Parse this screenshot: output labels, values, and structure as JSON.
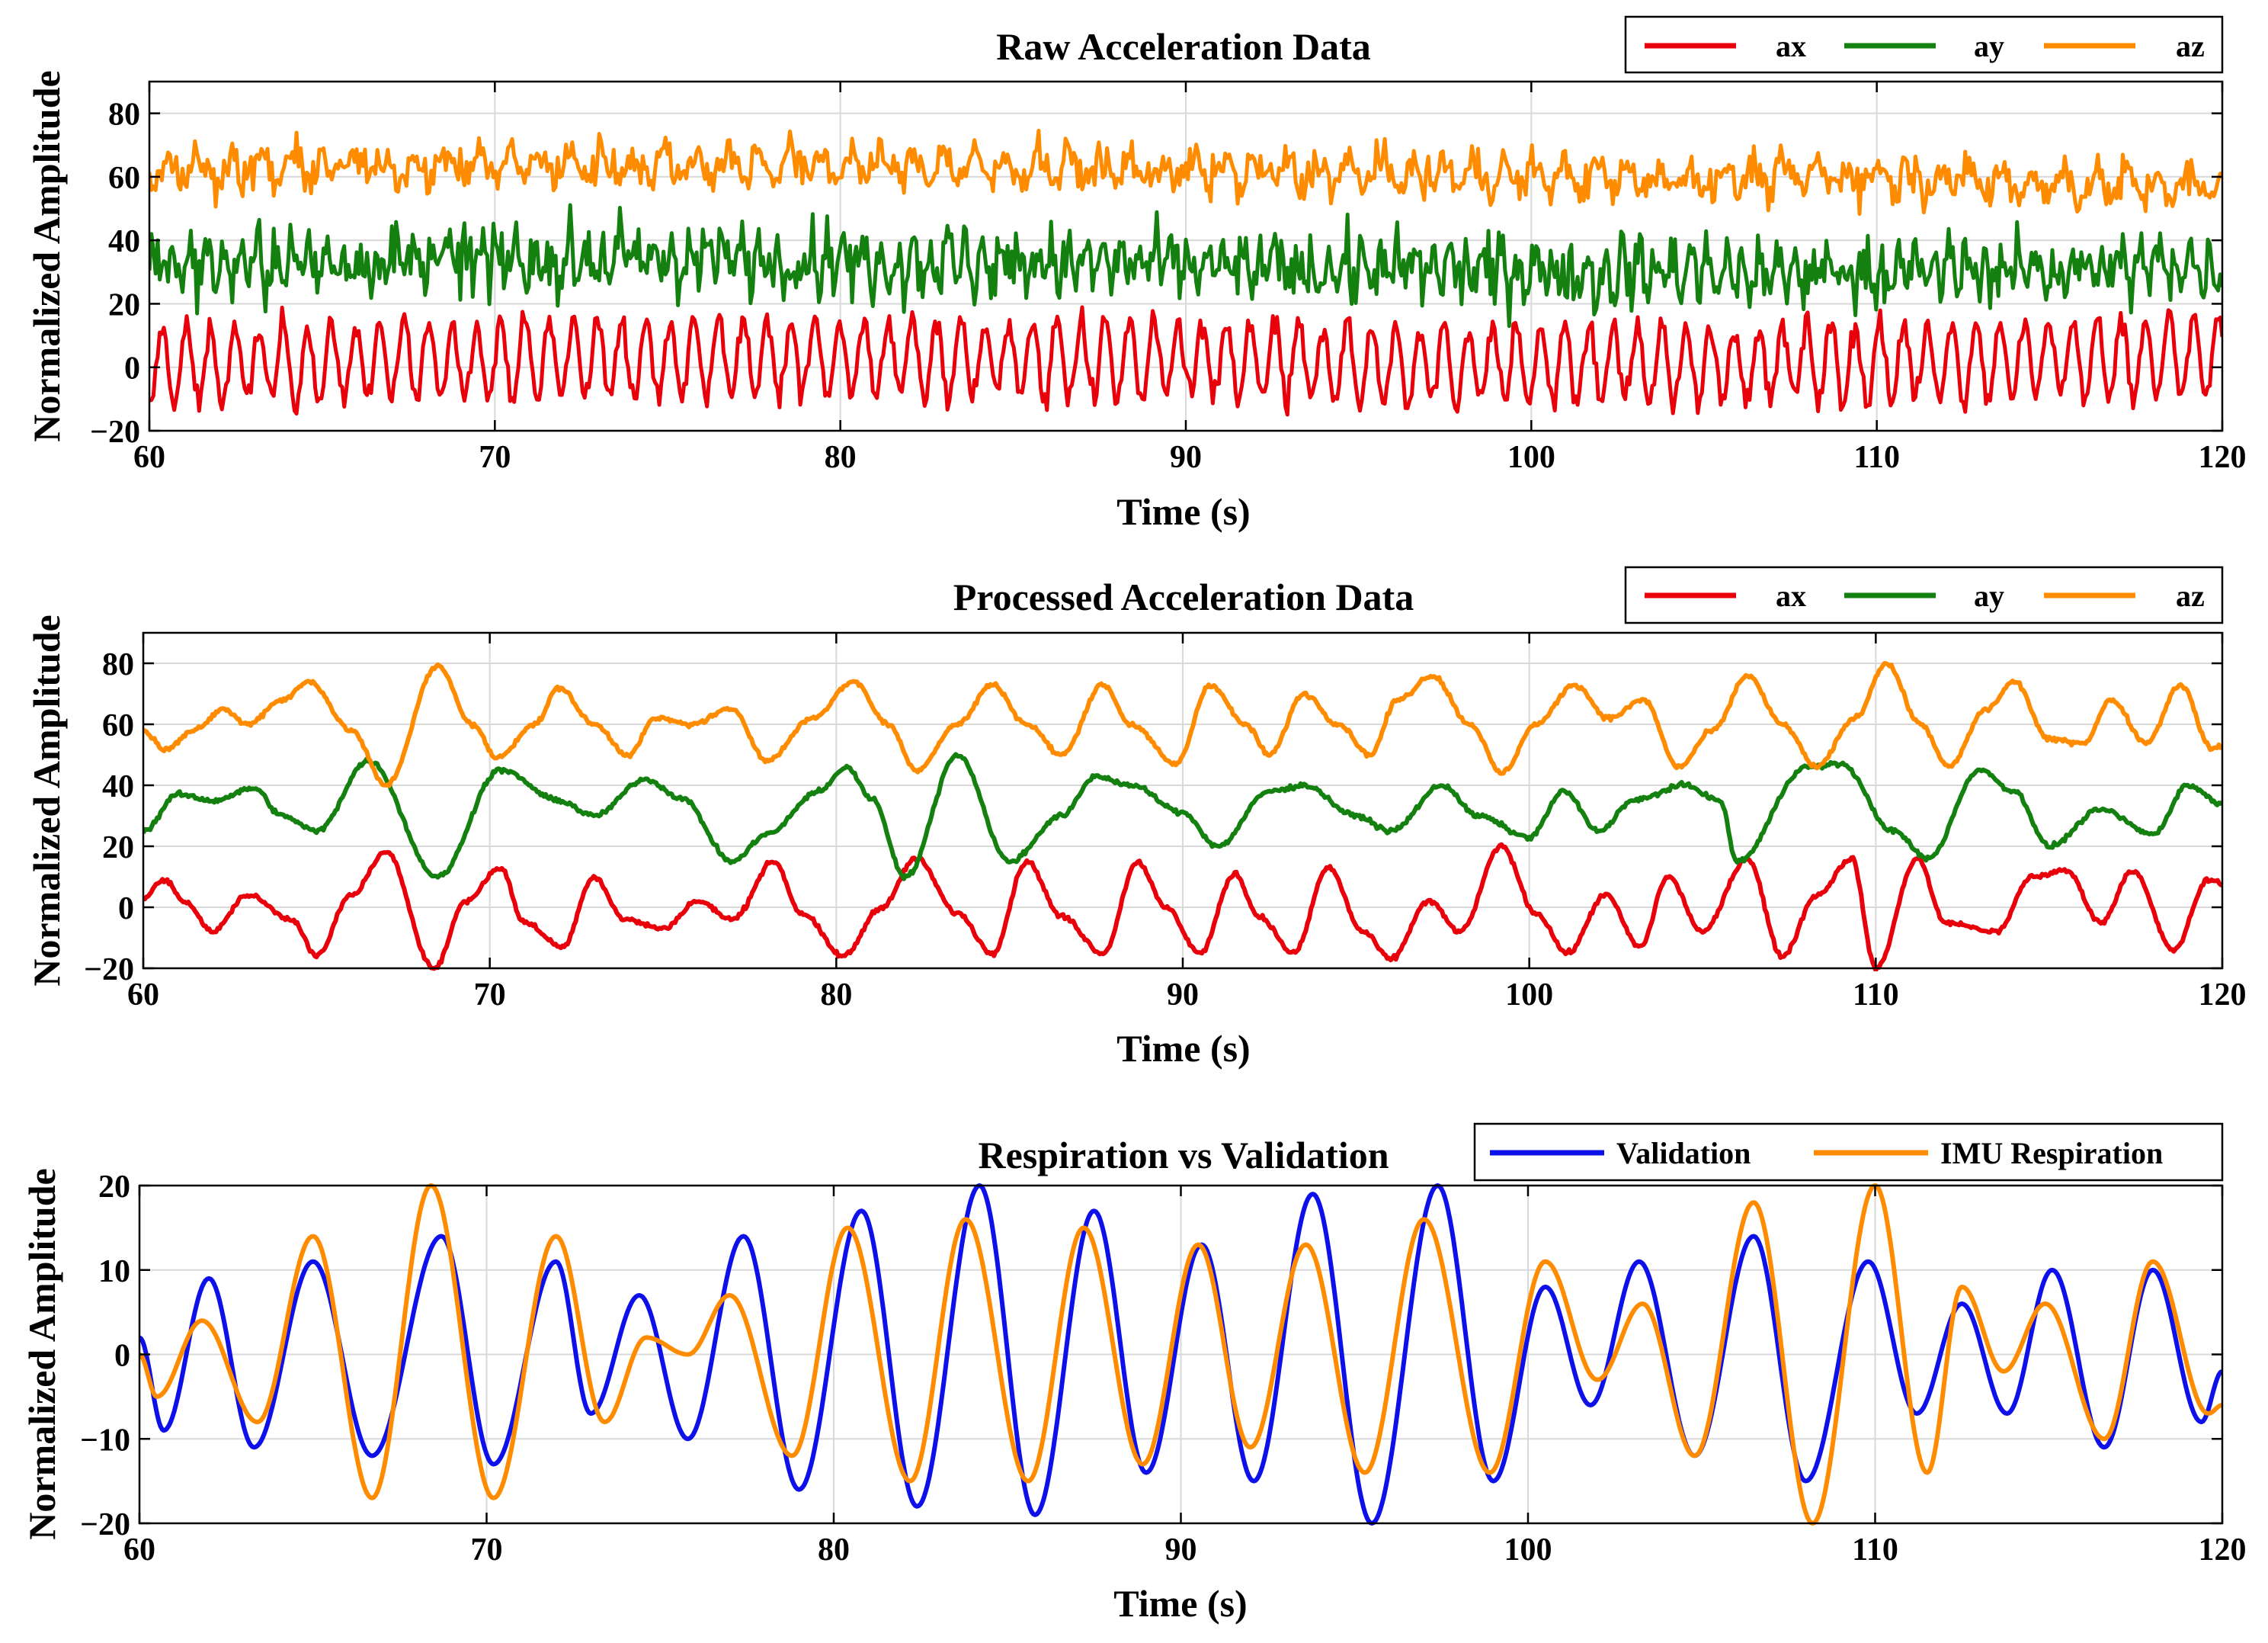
{
  "chart_data": [
    {
      "type": "line",
      "title": "Raw Acceleration Data",
      "xlabel": "Time (s)",
      "ylabel": "Normalized Amplitude",
      "xlim": [
        60,
        120
      ],
      "ylim": [
        -20,
        90
      ],
      "xticks": [
        60,
        70,
        80,
        90,
        100,
        110,
        120
      ],
      "yticks": [
        -20,
        0,
        20,
        40,
        60,
        80
      ],
      "xtick_labels": [
        "60",
        "70",
        "80",
        "90",
        "100",
        "110",
        "120"
      ],
      "ytick_labels": [
        "−20",
        "0",
        "20",
        "40",
        "60",
        "80"
      ],
      "grid": true,
      "legend": "top-right",
      "series": [
        {
          "name": "ax",
          "color": "#e8000b",
          "signal": "raw",
          "baseline": 0,
          "amplitude": 12,
          "noise": 3.5,
          "period_s": 0.7
        },
        {
          "name": "ay",
          "color": "#13800f",
          "signal": "raw",
          "baseline": 32,
          "amplitude": 5,
          "noise": 9,
          "period_s": 0.5
        },
        {
          "name": "az",
          "color": "#ff8c00",
          "signal": "raw",
          "baseline": 62,
          "amplitude": 4,
          "noise": 6,
          "period_s": 0.9
        }
      ]
    },
    {
      "type": "line",
      "title": "Processed Acceleration Data",
      "xlabel": "Time (s)",
      "ylabel": "Normalized Amplitude",
      "xlim": [
        60,
        120
      ],
      "ylim": [
        -20,
        90
      ],
      "xticks": [
        60,
        70,
        80,
        90,
        100,
        110,
        120
      ],
      "yticks": [
        -20,
        0,
        20,
        40,
        60,
        80
      ],
      "xtick_labels": [
        "60",
        "70",
        "80",
        "90",
        "100",
        "110",
        "120"
      ],
      "ytick_labels": [
        "−20",
        "0",
        "20",
        "40",
        "60",
        "80"
      ],
      "grid": true,
      "legend": "top-right",
      "series": [
        {
          "name": "ax",
          "color": "#e8000b",
          "offset": 0,
          "t": [
            60,
            60.6,
            61.2,
            62.0,
            63.0,
            64.3,
            65.0,
            66.0,
            67.0,
            68.4,
            69.3,
            70.3,
            71.0,
            72.1,
            73.0,
            73.9,
            75.0,
            76.0,
            77.0,
            78.2,
            79.0,
            80.2,
            81.3,
            82.3,
            83.5,
            84.5,
            85.5,
            86.5,
            87.7,
            88.7,
            89.5,
            90.5,
            91.5,
            92.2,
            93.2,
            94.2,
            95.2,
            96.0,
            97.1,
            98.0,
            99.2,
            100.2,
            101.1,
            102.2,
            103.2,
            104.0,
            105.0,
            106.3,
            107.3,
            108.3,
            109.3,
            110.0,
            111.2,
            112.0,
            113.5,
            114.5,
            115.5,
            116.5,
            117.4,
            118.6,
            119.6,
            120
          ],
          "y": [
            3,
            9,
            2,
            -8,
            4,
            -4,
            -16,
            4,
            18,
            -20,
            2,
            13,
            -5,
            -13,
            10,
            -4,
            -7,
            2,
            -4,
            15,
            -2,
            -16,
            0,
            16,
            -2,
            -15,
            15,
            -3,
            -15,
            15,
            0,
            -15,
            11,
            -3,
            -15,
            13,
            -8,
            -17,
            2,
            -8,
            20,
            -2,
            -15,
            4,
            -13,
            10,
            -8,
            16,
            -16,
            4,
            16,
            -20,
            16,
            -5,
            -8,
            10,
            12,
            -5,
            12,
            -14,
            9,
            8
          ]
        },
        {
          "name": "ay",
          "color": "#13800f",
          "offset": 0,
          "t": [
            60,
            61.0,
            62.0,
            63.2,
            64.0,
            65.0,
            66.5,
            68.5,
            70.3,
            72.0,
            73.0,
            74.5,
            75.5,
            77.0,
            78.0,
            79.5,
            80.3,
            81.0,
            82.0,
            83.5,
            85.0,
            86.5,
            87.5,
            88.5,
            90.0,
            91.0,
            92.5,
            93.5,
            95.0,
            96.0,
            97.5,
            98.5,
            100.0,
            101.0,
            102.0,
            103.0,
            104.5,
            105.5,
            106.0,
            108.0,
            109.0,
            110.5,
            111.5,
            113.0,
            114.0,
            115.0,
            116.5,
            118.0,
            119.0,
            120
          ],
          "y": [
            25,
            37,
            35,
            39,
            30,
            25,
            48,
            10,
            45,
            35,
            30,
            42,
            36,
            15,
            24,
            38,
            46,
            36,
            10,
            50,
            15,
            30,
            43,
            40,
            31,
            20,
            38,
            40,
            30,
            25,
            40,
            30,
            23,
            38,
            25,
            35,
            40,
            35,
            15,
            46,
            47,
            25,
            16,
            45,
            38,
            20,
            32,
            24,
            40,
            34
          ]
        },
        {
          "name": "az",
          "color": "#ff8c00",
          "offset": 0,
          "t": [
            60,
            60.6,
            61.5,
            62.3,
            63.0,
            64.0,
            64.8,
            66.0,
            67.0,
            68.5,
            69.5,
            70.2,
            71.3,
            72.0,
            73.0,
            74.0,
            74.8,
            75.8,
            77.0,
            78.0,
            79.3,
            80.5,
            81.5,
            82.3,
            83.5,
            84.5,
            85.5,
            86.5,
            87.7,
            88.5,
            89.8,
            90.8,
            91.8,
            92.5,
            93.5,
            94.5,
            95.4,
            96.2,
            97.2,
            98.3,
            99.2,
            100.2,
            101.3,
            102.3,
            103.3,
            104.3,
            105.3,
            106.3,
            107.3,
            108.3,
            109.4,
            110.3,
            111.3,
            112.1,
            113.2,
            114.0,
            115.0,
            116.0,
            116.8,
            117.8,
            118.8,
            119.7,
            120
          ],
          "y": [
            58,
            52,
            58,
            65,
            60,
            68,
            74,
            58,
            40,
            79,
            60,
            49,
            60,
            72,
            60,
            50,
            62,
            60,
            65,
            48,
            62,
            74,
            60,
            45,
            60,
            73,
            60,
            50,
            73,
            60,
            47,
            73,
            60,
            50,
            70,
            60,
            50,
            68,
            76,
            60,
            44,
            60,
            73,
            62,
            68,
            46,
            58,
            76,
            60,
            46,
            62,
            80,
            60,
            46,
            65,
            74,
            55,
            54,
            68,
            54,
            73,
            52,
            53
          ]
        }
      ]
    },
    {
      "type": "line",
      "title": "Respiration vs Validation",
      "xlabel": "Time (s)",
      "ylabel": "Normalized Amplitude",
      "xlim": [
        60,
        120
      ],
      "ylim": [
        -20,
        20
      ],
      "xticks": [
        60,
        70,
        80,
        90,
        100,
        110,
        120
      ],
      "yticks": [
        -20,
        -10,
        0,
        10,
        20
      ],
      "xtick_labels": [
        "60",
        "70",
        "80",
        "90",
        "100",
        "110",
        "120"
      ],
      "ytick_labels": [
        "−20",
        "−10",
        "0",
        "10",
        "20"
      ],
      "grid": true,
      "legend": "top-right",
      "series": [
        {
          "name": "Validation",
          "color": "#0d10e8",
          "t": [
            60,
            60.7,
            62.0,
            63.3,
            65.0,
            66.7,
            68.7,
            70.2,
            72.0,
            73.0,
            74.4,
            75.8,
            77.4,
            79.0,
            80.8,
            82.4,
            84.2,
            85.8,
            87.5,
            89.0,
            90.6,
            92.1,
            93.8,
            95.5,
            97.4,
            99.0,
            100.5,
            101.8,
            103.2,
            104.8,
            106.5,
            108.0,
            109.8,
            111.2,
            112.5,
            113.8,
            115.1,
            116.6,
            118.0,
            119.4,
            120
          ],
          "y": [
            2,
            -9,
            9,
            -11,
            11,
            -12,
            14,
            -13,
            11,
            -7,
            7,
            -10,
            14,
            -16,
            17,
            -18,
            20,
            -19,
            17,
            -14,
            13,
            -15,
            19,
            -20,
            20,
            -15,
            8,
            -6,
            11,
            -12,
            14,
            -15,
            11,
            -7,
            6,
            -7,
            10,
            -11,
            10,
            -8,
            -2
          ]
        },
        {
          "name": "IMU Respiration",
          "color": "#ff8c00",
          "t": [
            60,
            60.5,
            61.8,
            63.4,
            65.0,
            66.7,
            68.4,
            70.2,
            72.0,
            73.4,
            74.6,
            75.8,
            77.0,
            78.8,
            80.4,
            82.2,
            83.8,
            85.6,
            87.2,
            88.9,
            90.5,
            92.0,
            93.6,
            95.3,
            97.0,
            98.9,
            100.5,
            102.0,
            103.3,
            104.8,
            106.5,
            108.2,
            110.0,
            111.5,
            112.5,
            113.7,
            114.9,
            116.6,
            118.0,
            119.6,
            120
          ],
          "y": [
            0,
            -5,
            4,
            -8,
            14,
            -17,
            20,
            -17,
            14,
            -8,
            2,
            0,
            7,
            -12,
            15,
            -15,
            16,
            -15,
            15,
            -13,
            13,
            -11,
            13,
            -14,
            16,
            -14,
            11,
            -3,
            6,
            -12,
            18,
            -20,
            20,
            -14,
            8,
            -2,
            6,
            -10,
            11,
            -7,
            -6
          ]
        }
      ],
      "legend_labels": [
        "Validation",
        "IMU Respiration"
      ]
    }
  ]
}
